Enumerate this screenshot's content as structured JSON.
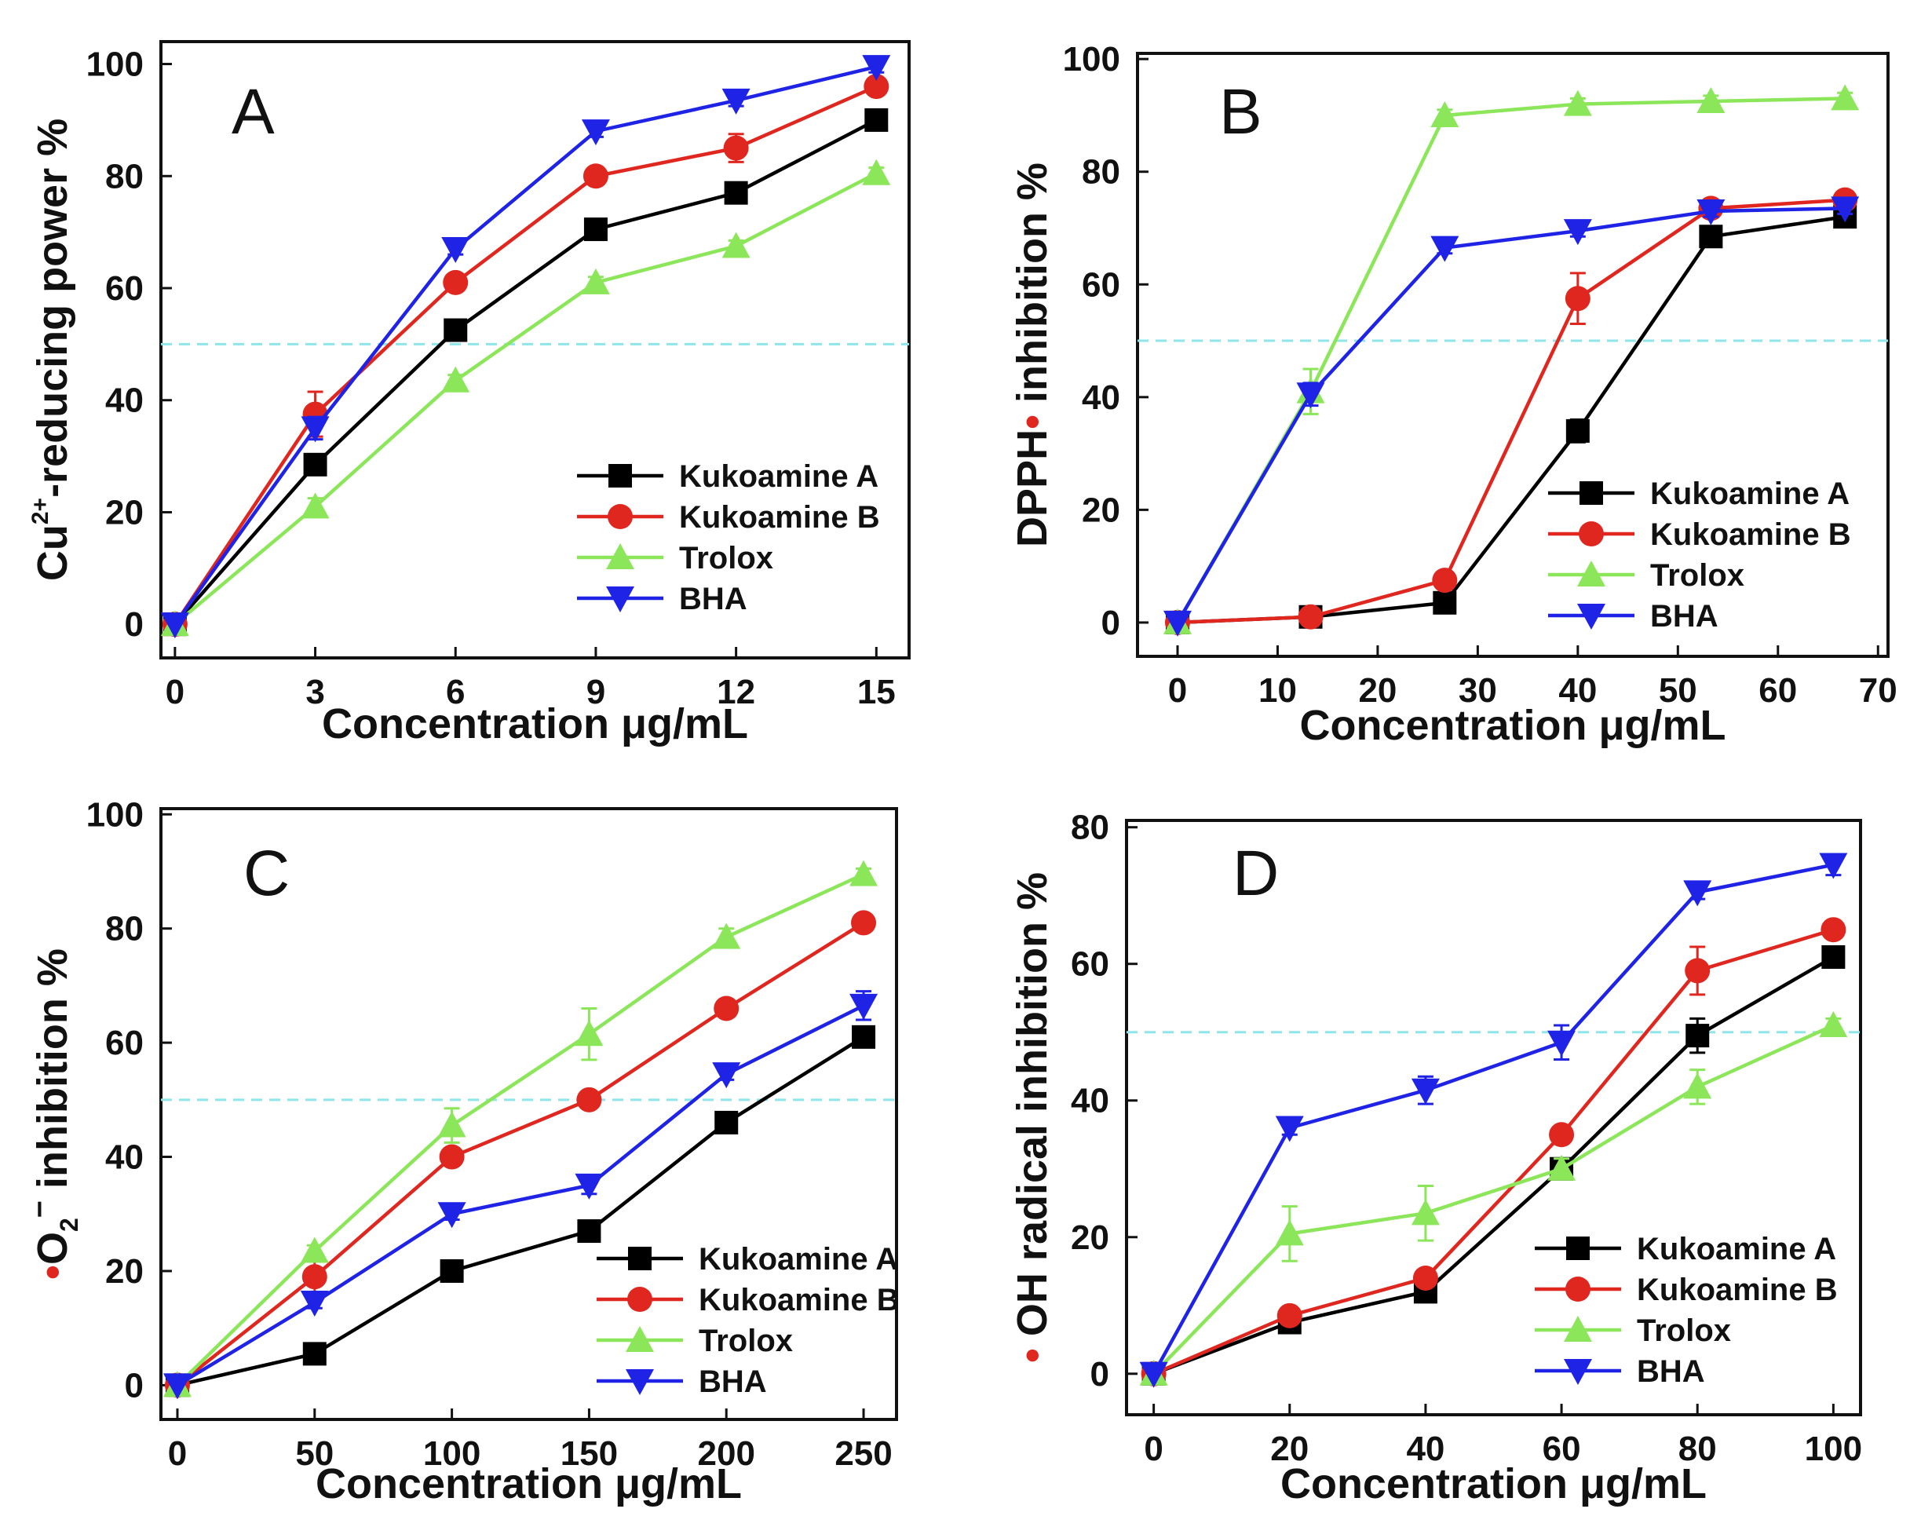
{
  "chart_data": [
    {
      "type": "line",
      "panel": "A",
      "xlabel": "Concentration μg/mL",
      "ylabel": {
        "pre": "Cu",
        "sup": "2+",
        "post": "-reducing power  %"
      },
      "xlim": [
        -0.3,
        15.7
      ],
      "ylim": [
        -6,
        104
      ],
      "xticks": [
        0,
        3,
        6,
        9,
        12,
        15
      ],
      "yticks": [
        0,
        20,
        40,
        60,
        80,
        100
      ],
      "reference_line": 50,
      "legend_position": "lower-right",
      "x": [
        0,
        3,
        6,
        9,
        12,
        15
      ],
      "series": [
        {
          "name": "Kukoamine A",
          "color": "#000000",
          "marker": "square",
          "values": [
            0,
            28.5,
            52.5,
            70.5,
            77,
            90
          ],
          "errors": [
            0,
            1.5,
            1,
            1,
            1,
            1
          ]
        },
        {
          "name": "Kukoamine B",
          "color": "#e0271f",
          "marker": "circle",
          "values": [
            0,
            37.5,
            61,
            80,
            85,
            96
          ],
          "errors": [
            0,
            4,
            1.5,
            1,
            2.5,
            1
          ]
        },
        {
          "name": "Trolox",
          "color": "#8ce65a",
          "marker": "triangle-up",
          "values": [
            0,
            21,
            43.5,
            61,
            67.5,
            80.5
          ],
          "errors": [
            0,
            1.5,
            1,
            1,
            1,
            1
          ]
        },
        {
          "name": "BHA",
          "color": "#1f23e6",
          "marker": "triangle-down",
          "values": [
            0,
            35,
            67,
            88,
            93.5,
            99.5
          ],
          "errors": [
            0,
            2,
            1,
            1,
            1,
            1
          ]
        }
      ]
    },
    {
      "type": "line",
      "panel": "B",
      "xlabel": "Concentration μg/mL",
      "ylabel": {
        "pre": "DPPH",
        "dot": "•",
        "post": " inhibition  %"
      },
      "xlim": [
        -4,
        71
      ],
      "ylim": [
        -6,
        101
      ],
      "xticks": [
        0,
        10,
        20,
        30,
        40,
        50,
        60,
        70
      ],
      "yticks": [
        0,
        20,
        40,
        60,
        80,
        100
      ],
      "reference_line": 50,
      "legend_position": "lower-right",
      "x": [
        0,
        13.3,
        26.7,
        40,
        53.3,
        66.7
      ],
      "series": [
        {
          "name": "Kukoamine A",
          "color": "#000000",
          "marker": "square",
          "values": [
            0,
            1,
            3.5,
            34,
            68.5,
            72
          ],
          "errors": [
            0,
            0.8,
            0.8,
            2,
            1,
            1
          ]
        },
        {
          "name": "Kukoamine B",
          "color": "#e0271f",
          "marker": "circle",
          "values": [
            0,
            1,
            7.5,
            57.5,
            73.5,
            75
          ],
          "errors": [
            0,
            0.8,
            1,
            4.5,
            1,
            1
          ]
        },
        {
          "name": "Trolox",
          "color": "#8ce65a",
          "marker": "triangle-up",
          "values": [
            0,
            41,
            90,
            92,
            92.5,
            93
          ],
          "errors": [
            0,
            4,
            1,
            1,
            1,
            1
          ]
        },
        {
          "name": "BHA",
          "color": "#1f23e6",
          "marker": "triangle-down",
          "values": [
            0,
            40.5,
            66.5,
            69.5,
            73,
            73.5
          ],
          "errors": [
            0,
            2,
            1,
            1,
            1,
            1
          ]
        }
      ]
    },
    {
      "type": "line",
      "panel": "C",
      "xlabel": "Concentration μg/mL",
      "ylabel": {
        "dot": "•",
        "pre": "O",
        "sub": "2",
        "sup": "−",
        "post": "  inhibition  %"
      },
      "xlim": [
        -6,
        262
      ],
      "ylim": [
        -6,
        101
      ],
      "xticks": [
        0,
        50,
        100,
        150,
        200,
        250
      ],
      "yticks": [
        0,
        20,
        40,
        60,
        80,
        100
      ],
      "reference_line": 50,
      "legend_position": "lower-right",
      "x": [
        0,
        50,
        100,
        150,
        200,
        250
      ],
      "series": [
        {
          "name": "Kukoamine A",
          "color": "#000000",
          "marker": "square",
          "values": [
            0,
            5.5,
            20,
            27,
            46,
            61
          ],
          "errors": [
            0,
            1,
            1,
            1,
            1,
            1.5
          ]
        },
        {
          "name": "Kukoamine B",
          "color": "#e0271f",
          "marker": "circle",
          "values": [
            0,
            19,
            40,
            50,
            66,
            81
          ],
          "errors": [
            0,
            3,
            1.5,
            1,
            1,
            1.5
          ]
        },
        {
          "name": "Trolox",
          "color": "#8ce65a",
          "marker": "triangle-up",
          "values": [
            0,
            23.5,
            45.5,
            61.5,
            78.5,
            89.5
          ],
          "errors": [
            0,
            1,
            3,
            4.5,
            1.5,
            1
          ]
        },
        {
          "name": "BHA",
          "color": "#1f23e6",
          "marker": "triangle-down",
          "values": [
            0,
            14.5,
            30,
            35,
            54.5,
            66.5
          ],
          "errors": [
            0,
            1,
            1,
            1.5,
            1,
            2.5
          ]
        }
      ]
    },
    {
      "type": "line",
      "panel": "D",
      "xlabel": "Concentration μg/mL",
      "ylabel": {
        "dot": "•",
        "post": " OH radical inhibition  %"
      },
      "xlim": [
        -4,
        104
      ],
      "ylim": [
        -6,
        81
      ],
      "xticks": [
        0,
        20,
        40,
        60,
        80,
        100
      ],
      "yticks": [
        0,
        20,
        40,
        60,
        80
      ],
      "reference_line": 50,
      "legend_position": "lower-right",
      "x": [
        0,
        20,
        40,
        60,
        80,
        100
      ],
      "series": [
        {
          "name": "Kukoamine A",
          "color": "#000000",
          "marker": "square",
          "values": [
            0,
            7.5,
            12,
            30,
            49.5,
            61
          ],
          "errors": [
            0,
            1,
            1,
            1,
            2.5,
            1
          ]
        },
        {
          "name": "Kukoamine B",
          "color": "#e0271f",
          "marker": "circle",
          "values": [
            0,
            8.5,
            14,
            35,
            59,
            65
          ],
          "errors": [
            0,
            1,
            1,
            1,
            3.5,
            1
          ]
        },
        {
          "name": "Trolox",
          "color": "#8ce65a",
          "marker": "triangle-up",
          "values": [
            0,
            20.5,
            23.5,
            30,
            42,
            51
          ],
          "errors": [
            0,
            4,
            4,
            1.5,
            2.5,
            1
          ]
        },
        {
          "name": "BHA",
          "color": "#1f23e6",
          "marker": "triangle-down",
          "values": [
            0,
            36,
            41.5,
            48.5,
            70.5,
            74.5
          ],
          "errors": [
            0,
            1,
            2,
            2.5,
            1,
            1.5
          ]
        }
      ]
    }
  ]
}
